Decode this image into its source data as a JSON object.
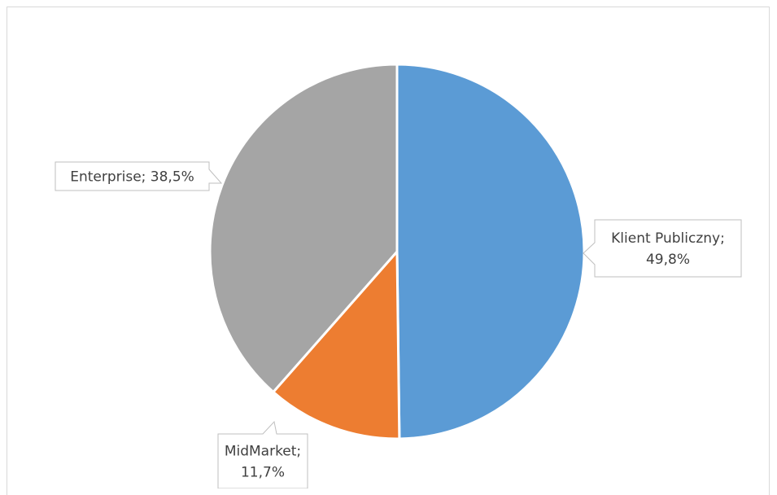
{
  "chart_data": {
    "type": "pie",
    "title": "",
    "categories": [
      "Klient Publiczny",
      "MidMarket",
      "Enterprise"
    ],
    "values": [
      49.8,
      11.7,
      38.5
    ],
    "value_format": "percent",
    "colors": [
      "#5b9bd5",
      "#ed7d31",
      "#a5a5a5"
    ],
    "labels": [
      {
        "lines": [
          "Klient Publiczny;",
          "49,8%"
        ]
      },
      {
        "lines": [
          "MidMarket;",
          "11,7%"
        ]
      },
      {
        "lines": [
          "Enterprise; 38,5%"
        ]
      }
    ],
    "legend": "none"
  }
}
